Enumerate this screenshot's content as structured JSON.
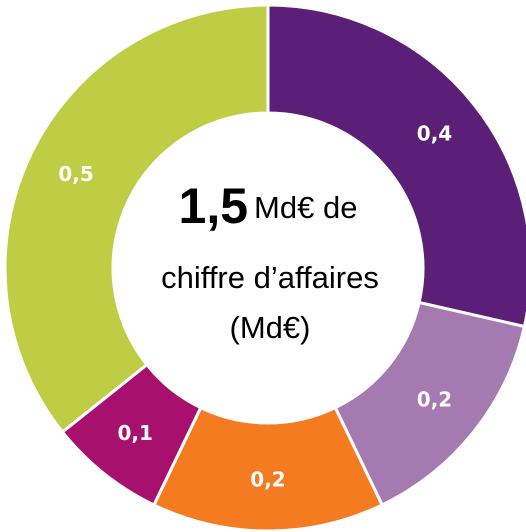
{
  "chart_data": {
    "type": "donut",
    "values": [
      0.4,
      0.2,
      0.2,
      0.1,
      0.5
    ],
    "value_labels": [
      "0,4",
      "0,2",
      "0,2",
      "0,1",
      "0,5"
    ],
    "colors": [
      "#5b1f78",
      "#a47ab0",
      "#f47b20",
      "#a8106e",
      "#bfcd45"
    ],
    "center_text": {
      "value": "1,5",
      "line1": "Md€ de",
      "line2": "chiffre d’affaires",
      "line3": "(Md€)"
    }
  }
}
